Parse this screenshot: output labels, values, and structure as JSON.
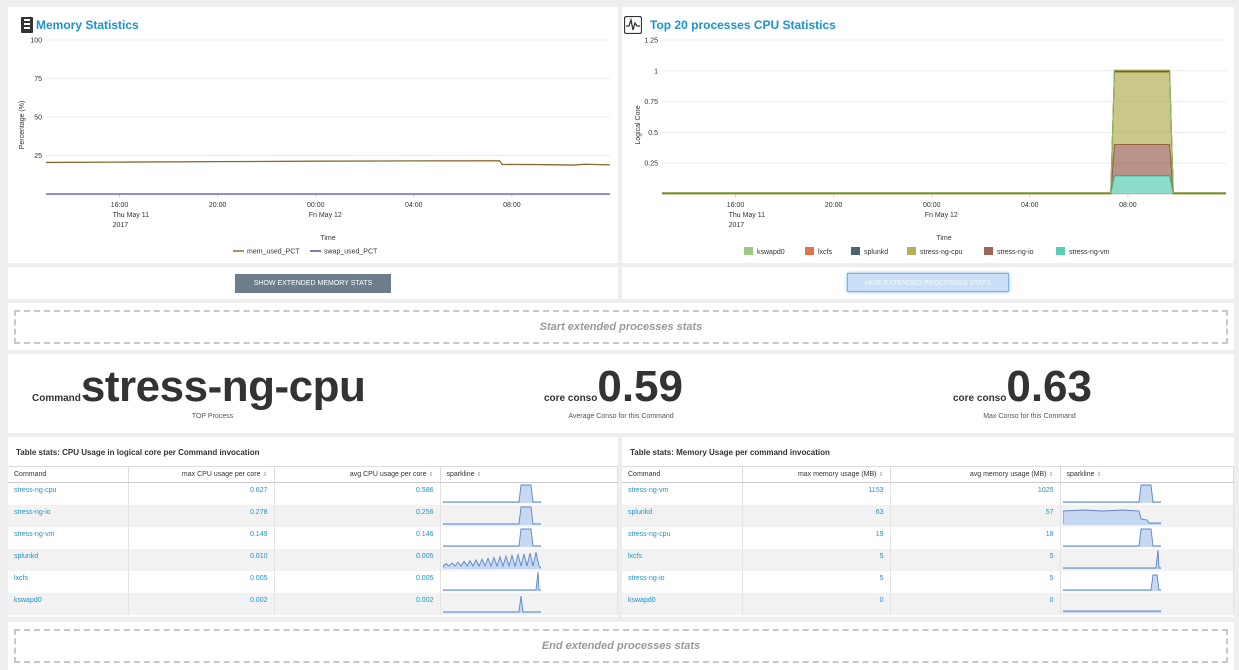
{
  "memory_panel": {
    "title": "Memory Statistics",
    "button": "SHOW EXTENDED MEMORY STATS"
  },
  "cpu_panel": {
    "title": "Top 20 processes CPU Statistics",
    "button": "HIDE EXTENDED PROCESSES STATS"
  },
  "chart_data": [
    {
      "type": "line",
      "title": "Memory Statistics",
      "xlabel": "Time",
      "ylabel": "Percentage (%)",
      "yticks": [
        "100",
        "75",
        "50",
        "25"
      ],
      "ylim": [
        0,
        100
      ],
      "xticks": [
        {
          "lines": [
            "16:00",
            "Thu May 11",
            "2017"
          ]
        },
        {
          "lines": [
            "20:00"
          ]
        },
        {
          "lines": [
            "00:00",
            "Fri May 12"
          ]
        },
        {
          "lines": [
            "04:00"
          ]
        },
        {
          "lines": [
            "08:00"
          ]
        }
      ],
      "x_hours": [
        13.0,
        16,
        20,
        24,
        28,
        31.5,
        31.6,
        33,
        34.5,
        35,
        36
      ],
      "series": [
        {
          "name": "mem_used_PCT",
          "color": "#8a6a2a",
          "values": [
            20.5,
            20.7,
            21.0,
            21.3,
            21.5,
            21.6,
            19.2,
            19.1,
            18.8,
            19.3,
            18.9
          ]
        },
        {
          "name": "swap_used_PCT",
          "color": "#5b4ba1",
          "values": [
            0,
            0,
            0,
            0,
            0,
            0,
            0,
            0,
            0,
            0,
            0
          ]
        }
      ],
      "legend": "bottom"
    },
    {
      "type": "area",
      "title": "Top 20 processes CPU Statistics",
      "xlabel": "Time",
      "ylabel": "Logical Core",
      "yticks": [
        "1.25",
        "1",
        "0.75",
        "0.5",
        "0.25"
      ],
      "ylim": [
        0,
        1.25
      ],
      "xticks": [
        {
          "lines": [
            "16:00",
            "Thu May 11",
            "2017"
          ]
        },
        {
          "lines": [
            "20:00"
          ]
        },
        {
          "lines": [
            "00:00",
            "Fri May 12"
          ]
        },
        {
          "lines": [
            "04:00"
          ]
        },
        {
          "lines": [
            "08:00"
          ]
        }
      ],
      "x_hours": [
        13.0,
        31.3,
        31.45,
        33.7,
        33.85,
        36
      ],
      "series": [
        {
          "name": "kswapd0",
          "color": "#8cbf6a",
          "values": [
            0,
            0,
            0.002,
            0.002,
            0,
            0
          ]
        },
        {
          "name": "lxcfs",
          "color": "#d85c2a",
          "values": [
            0,
            0,
            0.005,
            0.005,
            0,
            0
          ]
        },
        {
          "name": "splunkd",
          "color": "#2e4a56",
          "values": [
            0.01,
            0.01,
            0.01,
            0.01,
            0.01,
            0.01
          ]
        },
        {
          "name": "stress-ng-cpu",
          "color": "#a6a23a",
          "values": [
            0,
            0,
            0.586,
            0.586,
            0,
            0
          ]
        },
        {
          "name": "stress-ng-io",
          "color": "#8b4a3a",
          "values": [
            0,
            0,
            0.256,
            0.256,
            0,
            0
          ]
        },
        {
          "name": "stress-ng-vm",
          "color": "#3ec7a6",
          "values": [
            0,
            0,
            0.146,
            0.146,
            0,
            0
          ]
        }
      ],
      "legend": "bottom"
    }
  ],
  "banner_start": "Start extended processes stats",
  "banner_end": "End extended processes stats",
  "single_values": [
    {
      "prefix": "Command",
      "value": "stress-ng-cpu",
      "caption": "TOP Process"
    },
    {
      "prefix": "core conso",
      "value": "0.59",
      "caption": "Average Conso for this Command"
    },
    {
      "prefix": "core conso",
      "value": "0.63",
      "caption": "Max Conso for this Command"
    }
  ],
  "cpu_table": {
    "title": "Table stats: CPU Usage in logical core per Command invocation",
    "headers": [
      "Command",
      "max CPU usage per core",
      "avg CPU usage per core",
      "sparkline"
    ],
    "rows": [
      {
        "cmd": "stress-ng-cpu",
        "max": "0.627",
        "avg": "0.586",
        "spark": "block"
      },
      {
        "cmd": "stress-ng-io",
        "max": "0.278",
        "avg": "0.256",
        "spark": "block"
      },
      {
        "cmd": "stress-ng-vm",
        "max": "0.149",
        "avg": "0.146",
        "spark": "block"
      },
      {
        "cmd": "splunkd",
        "max": "0.010",
        "avg": "0.005",
        "spark": "zigzag"
      },
      {
        "cmd": "lxcfs",
        "max": "0.005",
        "avg": "0.005",
        "spark": "spike-end"
      },
      {
        "cmd": "kswapd0",
        "max": "0.002",
        "avg": "0.002",
        "spark": "spike-mid"
      }
    ]
  },
  "mem_table": {
    "title": "Table stats: Memory Usage per command invocation",
    "headers": [
      "Command",
      "max memory usage (MB)",
      "avg memory usage (MB)",
      "sparkline"
    ],
    "rows": [
      {
        "cmd": "stress-ng-vm",
        "max": "1153",
        "avg": "1025",
        "spark": "block"
      },
      {
        "cmd": "splunkd",
        "max": "63",
        "avg": "57",
        "spark": "plateau"
      },
      {
        "cmd": "stress-ng-cpu",
        "max": "19",
        "avg": "18",
        "spark": "block"
      },
      {
        "cmd": "lxcfs",
        "max": "5",
        "avg": "5",
        "spark": "spike-end"
      },
      {
        "cmd": "stress-ng-io",
        "max": "5",
        "avg": "5",
        "spark": "block-small"
      },
      {
        "cmd": "kswapd0",
        "max": "0",
        "avg": "0",
        "spark": "flat"
      }
    ]
  }
}
